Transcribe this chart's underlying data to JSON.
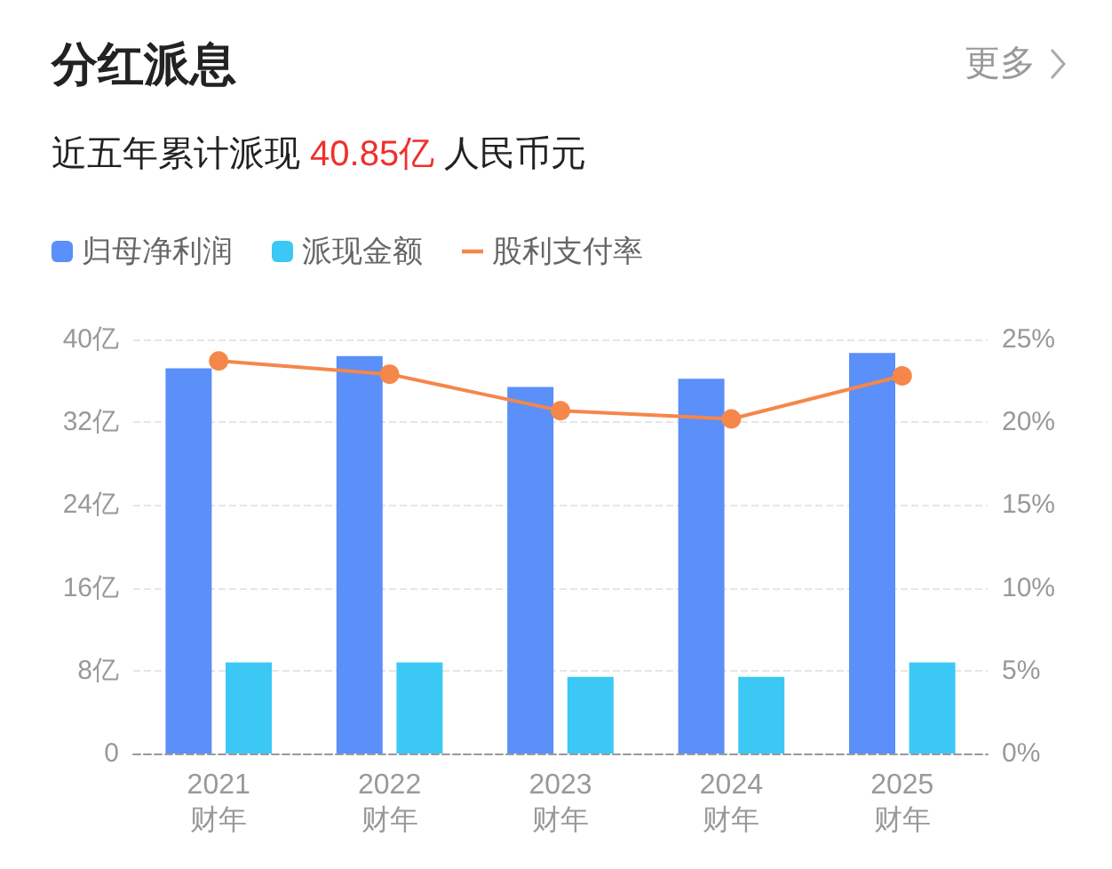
{
  "chart_data": {
    "type": "bar",
    "title": "分红派息",
    "subtitle": "近五年累计派现 40.85亿 人民币元",
    "annotations": [
      "更多"
    ],
    "categories": [
      "2021\n财年",
      "2022\n财年",
      "2023\n财年",
      "2024\n财年",
      "2025\n财年"
    ],
    "series": [
      {
        "name": "归母净利润",
        "color": "#5b8ff9",
        "values": [
          37.2,
          38.4,
          35.4,
          36.2,
          38.7
        ]
      },
      {
        "name": "派现金额",
        "color": "#3cc8f5",
        "values": [
          8.8,
          8.8,
          7.4,
          7.4,
          8.8
        ]
      },
      {
        "name": "股利支付率",
        "type": "line",
        "axis": "y2",
        "color": "#f5874a",
        "marker": "circle",
        "values": [
          23.7,
          22.9,
          20.7,
          20.2,
          22.8
        ]
      }
    ],
    "ylim": [
      0,
      40
    ],
    "yticks": [
      0,
      {
        "value": 8,
        "label": "8亿"
      },
      {
        "value": 16,
        "label": "16亿"
      },
      {
        "value": 24,
        "label": "24亿"
      },
      {
        "value": 32,
        "label": "32亿"
      },
      {
        "value": 40,
        "label": "40亿"
      }
    ],
    "y2lim": [
      0,
      25
    ],
    "y2ticks": [
      {
        "value": 0,
        "label": "0%"
      },
      {
        "value": 5,
        "label": "5%"
      },
      {
        "value": 10,
        "label": "10%"
      },
      {
        "value": 15,
        "label": "15%"
      },
      {
        "value": 20,
        "label": "20%"
      },
      {
        "value": 25,
        "label": "25%"
      }
    ],
    "grid": "y",
    "legend": "top left"
  }
}
